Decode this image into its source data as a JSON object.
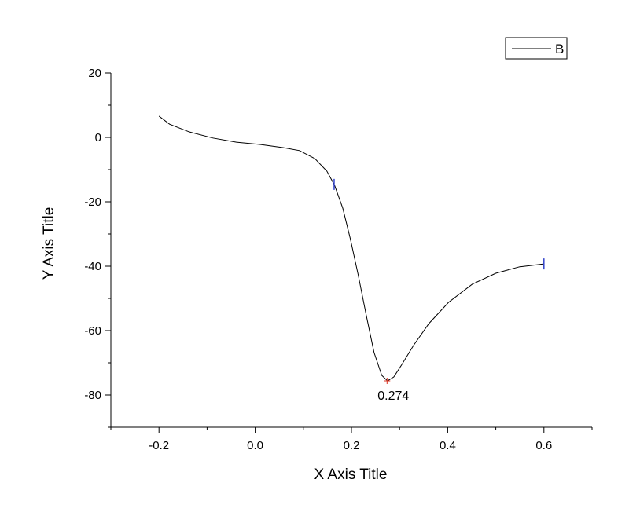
{
  "chart_data": {
    "type": "line",
    "x_label": "X Axis Title",
    "y_label": "Y Axis Title",
    "xlim": [
      -0.3,
      0.7
    ],
    "ylim": [
      -90,
      20
    ],
    "xticks": [
      -0.2,
      {
        "value": 0,
        "label": "0.0"
      },
      0.2,
      0.4,
      0.6
    ],
    "xminorticks": [
      -0.3,
      -0.1,
      0.1,
      0.3,
      0.5,
      0.7
    ],
    "yticks": [
      -80,
      -60,
      -40,
      -20,
      0,
      20
    ],
    "yminorticks": [
      -90,
      -70,
      -50,
      -30,
      -10,
      10
    ],
    "legend": "upper right",
    "series": [
      {
        "name": "B",
        "color": "#000000",
        "x": [
          -0.2,
          -0.178,
          -0.137,
          -0.088,
          -0.039,
          0.01,
          0.059,
          0.092,
          0.124,
          0.149,
          0.165,
          0.182,
          0.198,
          0.214,
          0.231,
          0.247,
          0.263,
          0.275,
          0.288,
          0.304,
          0.329,
          0.361,
          0.402,
          0.451,
          0.5,
          0.549,
          0.6
        ],
        "values": [
          6.6,
          4.1,
          1.7,
          -0.2,
          -1.5,
          -2.2,
          -3.2,
          -4.1,
          -6.6,
          -10.5,
          -14.9,
          -22,
          -31.7,
          -42.7,
          -55.4,
          -66.8,
          -73.9,
          -75.6,
          -74.4,
          -70.7,
          -64.6,
          -57.8,
          -51.2,
          -45.6,
          -42.2,
          -40.2,
          -39.3
        ]
      }
    ],
    "cursor_markers": {
      "color": "#3344cc",
      "x": [
        0.164,
        0.6
      ],
      "values": [
        -14.6,
        -39.3
      ]
    },
    "minimum_marker": {
      "color": "#dd3322",
      "x": 0.274,
      "value": -75.6,
      "label": "0.274"
    }
  }
}
